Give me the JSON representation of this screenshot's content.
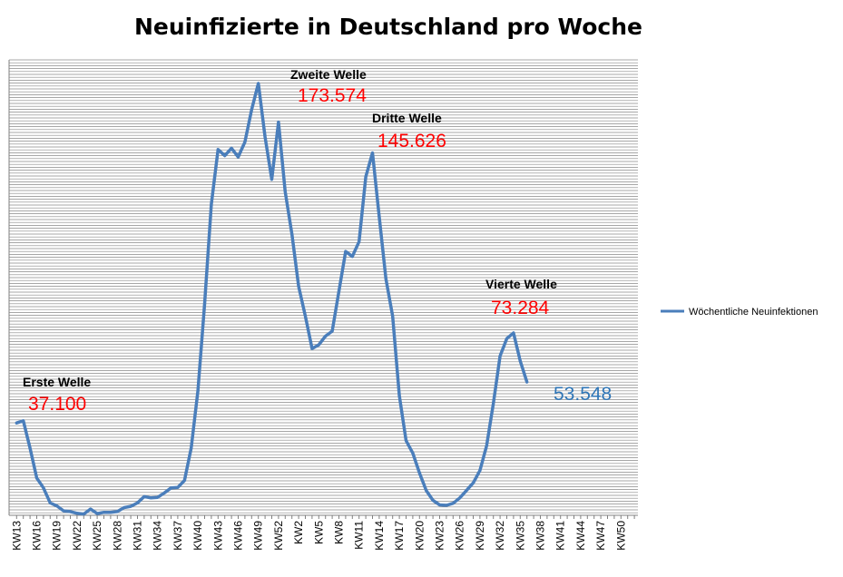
{
  "chart_data": {
    "type": "line",
    "title": "Neuinfizierte in Deutschland pro Woche",
    "series_color": "#4a7ebb",
    "label_color_peak": "#ff0000",
    "label_color_current": "#2e75b6",
    "grid": "horizontal",
    "legend_position": "right",
    "ylim": [
      0,
      183000
    ],
    "series": [
      {
        "name": "Wöchentliche Neuinfektionen",
        "values": [
          37100,
          38000,
          27000,
          15000,
          11000,
          5000,
          3800,
          1800,
          1500,
          800,
          500,
          2500,
          700,
          1200,
          1200,
          1500,
          3100,
          3600,
          5000,
          7500,
          7000,
          7200,
          9000,
          11000,
          11200,
          14000,
          27000,
          50000,
          85000,
          125000,
          147000,
          144500,
          147500,
          144000,
          150000,
          163000,
          173574,
          152000,
          135000,
          158000,
          130000,
          113000,
          92000,
          80000,
          67000,
          68500,
          72000,
          74000,
          90000,
          106000,
          104000,
          110000,
          136000,
          145626,
          120000,
          95000,
          80000,
          48000,
          30000,
          25000,
          17000,
          10000,
          6000,
          4200,
          4000,
          4800,
          7000,
          10000,
          13000,
          18000,
          28000,
          45000,
          64000,
          71000,
          73284,
          62000,
          53548
        ]
      }
    ],
    "x_tick_labels": [
      "KW13",
      "KW16",
      "KW19",
      "KW22",
      "KW25",
      "KW28",
      "KW31",
      "KW34",
      "KW37",
      "KW40",
      "KW43",
      "KW46",
      "KW49",
      "KW52",
      "KW2",
      "KW5",
      "KW8",
      "KW11",
      "KW14",
      "KW17",
      "KW20",
      "KW23",
      "KW26",
      "KW29",
      "KW32",
      "KW35",
      "KW38",
      "KW41",
      "KW44",
      "KW47",
      "KW50"
    ],
    "x_tick_every": 3,
    "annotations": [
      {
        "label": "Erste Welle",
        "value_text": "37.100",
        "index": 0
      },
      {
        "label": "Zweite Welle",
        "value_text": "173.574",
        "index": 36
      },
      {
        "label": "Dritte Welle",
        "value_text": "145.626",
        "index": 53
      },
      {
        "label": "Vierte Welle",
        "value_text": "73.284",
        "index": 74
      },
      {
        "label": "",
        "value_text": "53.548",
        "index": 76
      }
    ]
  }
}
